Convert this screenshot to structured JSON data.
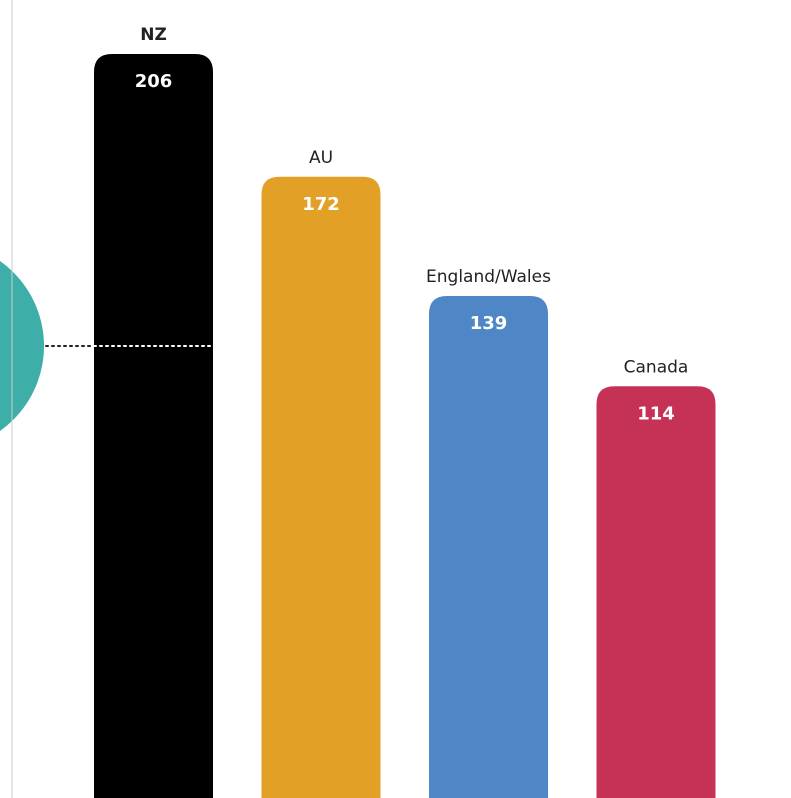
{
  "chart_data": {
    "type": "bar",
    "categories": [
      "NZ",
      "AU",
      "England/Wales",
      "Canada"
    ],
    "values": [
      206,
      172,
      139,
      114
    ],
    "value_labels": [
      "206",
      "172",
      "139",
      "114"
    ],
    "colors": [
      "#000000",
      "#E3A026",
      "#4E86C6",
      "#C53255"
    ],
    "highlight_category": "NZ",
    "reference_line": {
      "style": "dotted"
    },
    "title": "",
    "xlabel": "",
    "ylabel": "",
    "grid": false,
    "legend": "none"
  },
  "decor": {
    "side_circle_color": "#3EAEA9",
    "axis_line_color": "#CCCCCC"
  }
}
